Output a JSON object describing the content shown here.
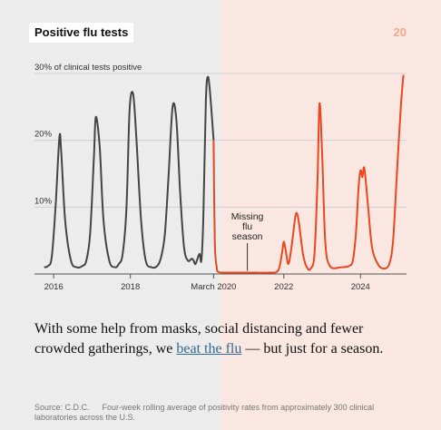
{
  "page_number": "20",
  "colors": {
    "pre_pandemic_bg": "#ececec",
    "pandemic_bg": "#fbe7e1",
    "pre_pandemic_line": "#444444",
    "pandemic_line": "#e8471f",
    "page_number": "#f2a78e",
    "link": "#326891"
  },
  "chart_data": {
    "type": "line",
    "title": "Positive flu tests",
    "ylabel": "30% of clinical tests positive",
    "ylim": [
      0,
      30
    ],
    "xlim": [
      2015.5,
      2025.2
    ],
    "y_ticks": [
      {
        "value": 30,
        "label": "30% of clinical tests positive"
      },
      {
        "value": 20,
        "label": "20%"
      },
      {
        "value": 10,
        "label": "10%"
      }
    ],
    "x_ticks": [
      {
        "value": 2016,
        "label": "2016"
      },
      {
        "value": 2018,
        "label": "2018"
      },
      {
        "value": 2020.17,
        "label": "March 2020"
      },
      {
        "value": 2022,
        "label": "2022"
      },
      {
        "value": 2024,
        "label": "2024"
      }
    ],
    "annotation": {
      "text_lines": [
        "Missing",
        "flu",
        "season"
      ],
      "x": 2021.05,
      "y": 0.2
    },
    "series": [
      {
        "key": "pre",
        "points": [
          [
            2015.75,
            1.0
          ],
          [
            2015.85,
            1.2
          ],
          [
            2015.95,
            2.5
          ],
          [
            2016.05,
            10.0
          ],
          [
            2016.15,
            20.5
          ],
          [
            2016.2,
            18.0
          ],
          [
            2016.3,
            8.0
          ],
          [
            2016.45,
            2.0
          ],
          [
            2016.6,
            1.0
          ],
          [
            2016.75,
            1.2
          ],
          [
            2016.85,
            2.0
          ],
          [
            2016.95,
            6.0
          ],
          [
            2017.05,
            17.5
          ],
          [
            2017.1,
            23.5
          ],
          [
            2017.2,
            19.0
          ],
          [
            2017.3,
            8.0
          ],
          [
            2017.45,
            2.0
          ],
          [
            2017.6,
            1.0
          ],
          [
            2017.7,
            1.5
          ],
          [
            2017.8,
            3.0
          ],
          [
            2017.9,
            10.0
          ],
          [
            2017.98,
            24.5
          ],
          [
            2018.07,
            27.0
          ],
          [
            2018.15,
            21.0
          ],
          [
            2018.28,
            8.0
          ],
          [
            2018.4,
            2.0
          ],
          [
            2018.55,
            1.0
          ],
          [
            2018.7,
            1.2
          ],
          [
            2018.8,
            2.5
          ],
          [
            2018.9,
            6.0
          ],
          [
            2019.0,
            15.0
          ],
          [
            2019.1,
            25.0
          ],
          [
            2019.2,
            23.0
          ],
          [
            2019.3,
            12.0
          ],
          [
            2019.4,
            4.0
          ],
          [
            2019.5,
            2.0
          ],
          [
            2019.6,
            2.3
          ],
          [
            2019.65,
            2.0
          ],
          [
            2019.7,
            1.5
          ],
          [
            2019.8,
            3.0
          ],
          [
            2019.85,
            2.0
          ],
          [
            2019.9,
            8.0
          ],
          [
            2019.97,
            26.0
          ],
          [
            2020.02,
            29.5
          ],
          [
            2020.08,
            27.0
          ],
          [
            2020.17,
            20.0
          ]
        ]
      },
      {
        "key": "pandemic",
        "points": [
          [
            2020.17,
            20.0
          ],
          [
            2020.2,
            5.0
          ],
          [
            2020.25,
            1.0
          ],
          [
            2020.3,
            0.3
          ],
          [
            2020.5,
            0.2
          ],
          [
            2020.8,
            0.2
          ],
          [
            2021.0,
            0.2
          ],
          [
            2021.3,
            0.2
          ],
          [
            2021.6,
            0.2
          ],
          [
            2021.85,
            0.5
          ],
          [
            2021.95,
            3.0
          ],
          [
            2022.0,
            4.8
          ],
          [
            2022.05,
            3.5
          ],
          [
            2022.12,
            1.5
          ],
          [
            2022.2,
            4.0
          ],
          [
            2022.3,
            8.5
          ],
          [
            2022.35,
            9.0
          ],
          [
            2022.4,
            7.5
          ],
          [
            2022.5,
            3.0
          ],
          [
            2022.6,
            1.0
          ],
          [
            2022.7,
            0.8
          ],
          [
            2022.8,
            3.0
          ],
          [
            2022.88,
            14.0
          ],
          [
            2022.93,
            25.5
          ],
          [
            2023.0,
            18.0
          ],
          [
            2023.08,
            5.0
          ],
          [
            2023.2,
            1.2
          ],
          [
            2023.5,
            1.0
          ],
          [
            2023.7,
            1.2
          ],
          [
            2023.8,
            2.0
          ],
          [
            2023.88,
            6.0
          ],
          [
            2023.95,
            13.0
          ],
          [
            2024.0,
            15.5
          ],
          [
            2024.05,
            14.5
          ],
          [
            2024.1,
            15.8
          ],
          [
            2024.2,
            10.0
          ],
          [
            2024.3,
            4.0
          ],
          [
            2024.45,
            1.5
          ],
          [
            2024.6,
            0.8
          ],
          [
            2024.75,
            1.5
          ],
          [
            2024.85,
            5.0
          ],
          [
            2024.95,
            15.0
          ],
          [
            2025.05,
            25.0
          ],
          [
            2025.12,
            29.8
          ]
        ]
      }
    ]
  },
  "caption": {
    "before": "With some help from masks, social distancing and fewer crowded gatherings, we ",
    "link": "beat the flu",
    "after": " — but just for a season."
  },
  "source": {
    "label": "Source: C.D.C.",
    "text": "Four-week rolling average of positivity rates from approximately 300 clinical laboratories across the U.S."
  }
}
